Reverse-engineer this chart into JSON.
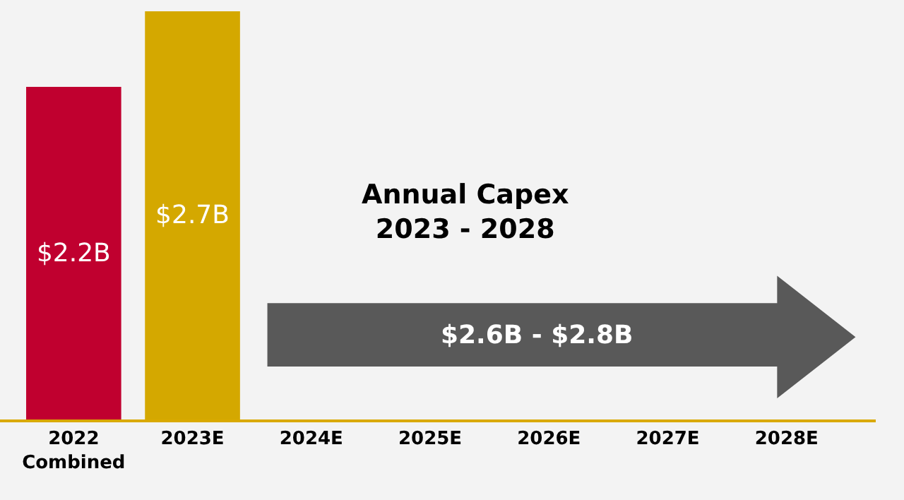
{
  "chart_data": {
    "type": "bar",
    "categories": [
      "2022\nCombined",
      "2023E",
      "2024E",
      "2025E",
      "2026E",
      "2027E",
      "2028E"
    ],
    "values": [
      2.2,
      2.7,
      null,
      null,
      null,
      null,
      null
    ],
    "colors": [
      "#c0002f",
      "#d4a800",
      null,
      null,
      null,
      null,
      null
    ],
    "value_labels": [
      "$2.2B",
      "$2.7B",
      null,
      null,
      null,
      null,
      null
    ],
    "annotations": [
      "Annual Capex\n2023 - 2028",
      "$2.6B - $2.8B"
    ],
    "grid": false,
    "legend": false
  }
}
